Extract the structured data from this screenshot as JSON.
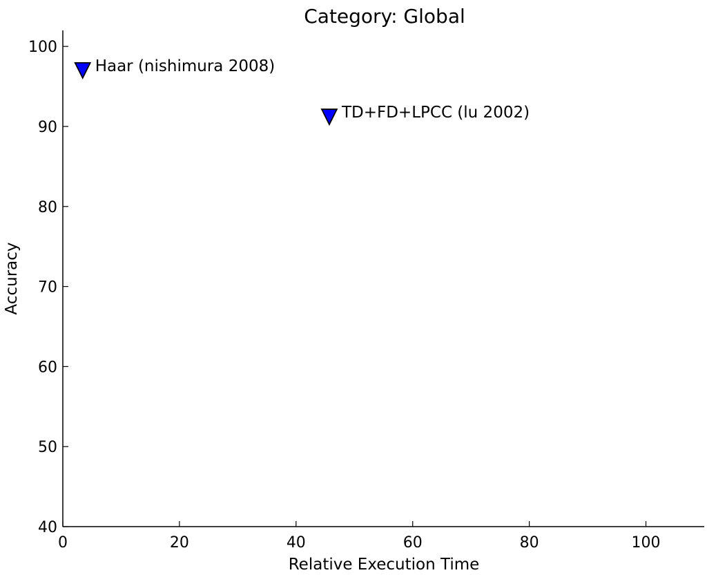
{
  "chart_data": {
    "type": "scatter",
    "title": "Category: Global",
    "xlabel": "Relative Execution Time",
    "ylabel": "Accuracy",
    "xlim": [
      0,
      110
    ],
    "ylim": [
      40,
      102
    ],
    "xticks": [
      0,
      20,
      40,
      60,
      80,
      100
    ],
    "yticks": [
      40,
      50,
      60,
      70,
      80,
      90,
      100
    ],
    "grid": false,
    "marker": "triangle-down",
    "marker_color": "#0000ff",
    "points": [
      {
        "x": 3.4,
        "y": 97.0,
        "label": "Haar (nishimura 2008)"
      },
      {
        "x": 45.7,
        "y": 91.2,
        "label": "TD+FD+LPCC (lu 2002)"
      }
    ]
  }
}
